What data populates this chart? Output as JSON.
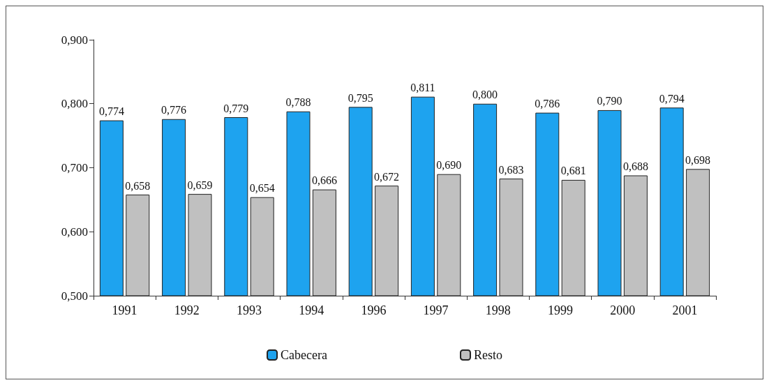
{
  "chart_data": {
    "type": "bar",
    "categories": [
      "1991",
      "1992",
      "1993",
      "1994",
      "1996",
      "1997",
      "1998",
      "1999",
      "2000",
      "2001"
    ],
    "series": [
      {
        "name": "Cabecera",
        "color": "#1ea3ef",
        "values": [
          0.774,
          0.776,
          0.779,
          0.788,
          0.795,
          0.811,
          0.8,
          0.786,
          0.79,
          0.794
        ],
        "value_labels": [
          "0,774",
          "0,776",
          "0,779",
          "0,788",
          "0,795",
          "0,811",
          "0,800",
          "0,786",
          "0,790",
          "0,794"
        ]
      },
      {
        "name": "Resto",
        "color": "#c0c0c0",
        "values": [
          0.658,
          0.659,
          0.654,
          0.666,
          0.672,
          0.69,
          0.683,
          0.681,
          0.688,
          0.698
        ],
        "value_labels": [
          "0,658",
          "0,659",
          "0,654",
          "0,666",
          "0,672",
          "0,690",
          "0,683",
          "0,681",
          "0,688",
          "0,698"
        ]
      }
    ],
    "ylim": [
      0.5,
      0.9
    ],
    "yticks": [
      {
        "value": 0.5,
        "label": "0,500"
      },
      {
        "value": 0.6,
        "label": "0,600"
      },
      {
        "value": 0.7,
        "label": "0,700"
      },
      {
        "value": 0.8,
        "label": "0,800"
      },
      {
        "value": 0.9,
        "label": "0,900"
      }
    ],
    "grid": false,
    "legend": "bottom"
  }
}
